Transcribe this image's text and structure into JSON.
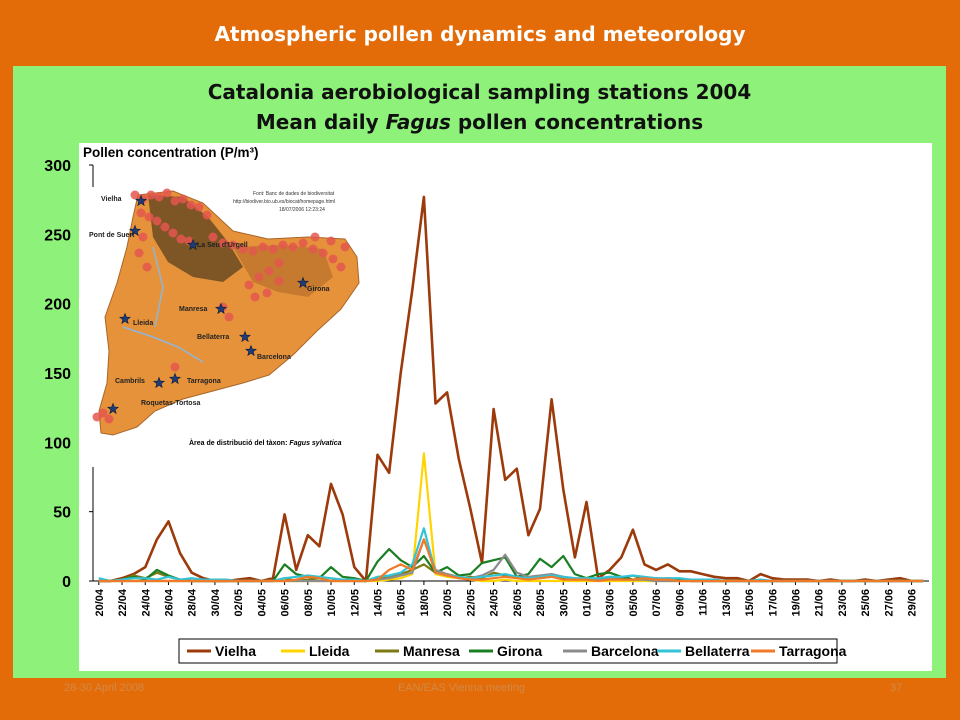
{
  "header": {
    "title": "Atmospheric pollen dynamics and meteorology"
  },
  "slide": {
    "title_line1": "Catalonia aerobiological sampling stations 2004",
    "title_line2_pre": "Mean daily ",
    "title_line2_em": "Fagus",
    "title_line2_post": " pollen concentrations"
  },
  "footer": {
    "date": "28-30 April 2008",
    "center": "EAN/EAS Vienna meeting",
    "page": "37"
  },
  "map": {
    "source_line1": "Font: Banc de dades de biodiversitat",
    "source_line2": "http://biodiver.bio.ub.es/biocat/homepage.html",
    "source_line3": "18/07/2006 12:23:24",
    "caption_pre": "Àrea de distribució del tàxon: ",
    "caption_em": "Fagus sylvatica",
    "stations": [
      "Vielha",
      "Pont de Suert",
      "La Seu d'Urgell",
      "Girona",
      "Manresa",
      "Lleida",
      "Bellaterra",
      "Barcelona",
      "Cambrils",
      "Tarragona",
      "Roquetas-Tortosa"
    ]
  },
  "chart_data": {
    "type": "line",
    "ylabel": "Pollen concentration (P/m³)",
    "ylim": [
      0,
      300
    ],
    "yticks": [
      0,
      50,
      100,
      150,
      200,
      250,
      300
    ],
    "x_start": "20/04",
    "x_end": "30/06",
    "x_step_days": 1,
    "tick_labels": [
      "20/04",
      "22/04",
      "24/04",
      "26/04",
      "28/04",
      "30/04",
      "02/05",
      "04/05",
      "06/05",
      "08/05",
      "10/05",
      "12/05",
      "14/05",
      "16/05",
      "18/05",
      "20/05",
      "22/05",
      "24/05",
      "26/05",
      "28/05",
      "30/05",
      "01/06",
      "03/06",
      "05/06",
      "07/06",
      "09/06",
      "11/06",
      "13/06",
      "15/06",
      "17/06",
      "19/06",
      "21/06",
      "23/06",
      "25/06",
      "27/06",
      "29/06"
    ],
    "legend_position": "bottom",
    "series": [
      {
        "name": "Vielha",
        "color": "#9c3a0b",
        "width": 2.6,
        "values": [
          0,
          0,
          2,
          5,
          10,
          30,
          43,
          20,
          6,
          2,
          0,
          0,
          1,
          2,
          0,
          2,
          48,
          8,
          33,
          25,
          70,
          48,
          10,
          0,
          91,
          78,
          150,
          210,
          277,
          128,
          136,
          88,
          52,
          13,
          124,
          73,
          81,
          33,
          52,
          131,
          66,
          17,
          57,
          2,
          8,
          17,
          37,
          12,
          8,
          12,
          7,
          7,
          5,
          3,
          2,
          2,
          0,
          5,
          2,
          1,
          1,
          1,
          0,
          1,
          0,
          0,
          1,
          0,
          1,
          2,
          0,
          0
        ]
      },
      {
        "name": "Lleida",
        "color": "#ffd400",
        "width": 2.2,
        "values": [
          0,
          0,
          0,
          0,
          0,
          0,
          0,
          0,
          0,
          0,
          0,
          0,
          0,
          0,
          0,
          0,
          0,
          0,
          0,
          0,
          0,
          0,
          0,
          0,
          0,
          1,
          2,
          5,
          92,
          5,
          3,
          2,
          1,
          0,
          0,
          1,
          0,
          0,
          0,
          0,
          0,
          0,
          0,
          0,
          0,
          0,
          0,
          0,
          0,
          0,
          0,
          0,
          0,
          0,
          0,
          0,
          0,
          0,
          0,
          0,
          0,
          0,
          0,
          0,
          0,
          0,
          0,
          0,
          0,
          0,
          0,
          0
        ]
      },
      {
        "name": "Manresa",
        "color": "#7b7a13",
        "width": 2.2,
        "values": [
          0,
          0,
          1,
          4,
          2,
          6,
          3,
          1,
          0,
          0,
          0,
          0,
          0,
          0,
          0,
          0,
          2,
          0,
          1,
          2,
          0,
          1,
          0,
          0,
          2,
          3,
          5,
          8,
          12,
          6,
          5,
          2,
          3,
          2,
          6,
          4,
          3,
          2,
          2,
          3,
          2,
          1,
          2,
          1,
          3,
          2,
          4,
          1,
          2,
          1,
          1,
          0,
          0,
          0,
          0,
          0,
          0,
          0,
          0,
          0,
          0,
          0,
          0,
          0,
          0,
          0,
          0,
          0,
          0,
          0,
          0,
          0
        ]
      },
      {
        "name": "Girona",
        "color": "#1a7f23",
        "width": 2.2,
        "values": [
          0,
          0,
          1,
          3,
          1,
          8,
          4,
          1,
          0,
          0,
          0,
          0,
          0,
          0,
          0,
          0,
          12,
          5,
          3,
          2,
          10,
          3,
          2,
          0,
          14,
          23,
          15,
          10,
          18,
          6,
          10,
          4,
          5,
          13,
          15,
          17,
          3,
          5,
          16,
          10,
          18,
          5,
          2,
          5,
          6,
          3,
          1,
          2,
          1,
          2,
          1,
          0,
          0,
          0,
          0,
          0,
          0,
          0,
          0,
          0,
          0,
          0,
          0,
          0,
          0,
          0,
          0,
          0,
          0,
          0,
          0,
          0
        ]
      },
      {
        "name": "Barcelona",
        "color": "#8c8c8c",
        "width": 2.2,
        "values": [
          0,
          0,
          0,
          0,
          0,
          0,
          0,
          0,
          0,
          0,
          0,
          0,
          0,
          0,
          0,
          0,
          0,
          0,
          0,
          0,
          0,
          0,
          0,
          0,
          1,
          2,
          4,
          6,
          30,
          8,
          5,
          3,
          2,
          4,
          8,
          19,
          6,
          3,
          4,
          5,
          3,
          2,
          1,
          1,
          2,
          1,
          1,
          1,
          0,
          0,
          0,
          0,
          0,
          0,
          0,
          0,
          0,
          0,
          0,
          0,
          0,
          0,
          0,
          0,
          0,
          0,
          0,
          0,
          0,
          0,
          0,
          0
        ]
      },
      {
        "name": "Bellaterra",
        "color": "#33c3d6",
        "width": 2.2,
        "values": [
          2,
          0,
          1,
          2,
          2,
          1,
          3,
          1,
          2,
          1,
          1,
          1,
          0,
          0,
          0,
          0,
          2,
          3,
          4,
          3,
          2,
          1,
          1,
          0,
          3,
          4,
          6,
          12,
          38,
          6,
          4,
          3,
          2,
          3,
          4,
          5,
          3,
          2,
          3,
          4,
          3,
          2,
          2,
          2,
          3,
          3,
          4,
          3,
          2,
          2,
          2,
          1,
          1,
          1,
          0,
          0,
          0,
          1,
          0,
          0,
          0,
          0,
          0,
          0,
          0,
          0,
          0,
          0,
          0,
          0,
          0,
          0
        ]
      },
      {
        "name": "Tarragona",
        "color": "#f07a2a",
        "width": 2.2,
        "values": [
          0,
          0,
          0,
          0,
          0,
          0,
          0,
          0,
          0,
          0,
          0,
          0,
          0,
          0,
          0,
          0,
          0,
          1,
          3,
          2,
          0,
          0,
          0,
          0,
          1,
          8,
          12,
          8,
          30,
          6,
          4,
          2,
          1,
          1,
          2,
          3,
          2,
          1,
          2,
          3,
          1,
          1,
          1,
          0,
          1,
          1,
          1,
          2,
          1,
          1,
          0,
          0,
          0,
          0,
          0,
          0,
          0,
          0,
          0,
          0,
          0,
          0,
          0,
          0,
          0,
          0,
          0,
          0,
          0,
          0,
          0,
          0
        ]
      }
    ]
  }
}
